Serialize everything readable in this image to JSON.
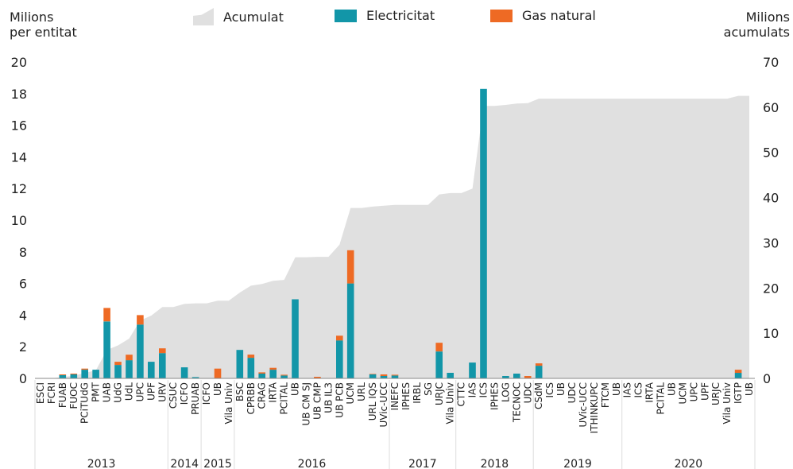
{
  "header": {
    "ylabel_left_1": "Milions",
    "ylabel_left_2": "per entitat",
    "ylabel_right_1": "Milions",
    "ylabel_right_2": "acumulats"
  },
  "legend": {
    "accumulated": "Acumulat",
    "electricity": "Electricitat",
    "gas": "Gas natural"
  },
  "colors": {
    "electricity": "#1296a8",
    "gas": "#ee6a24",
    "accumulated": "#e0e0e0",
    "axis": "#888888",
    "grid": "#dddddd"
  },
  "chart_data": {
    "type": "bar",
    "stacked": true,
    "ylim": [
      0,
      20
    ],
    "y_ticks": [
      0,
      2,
      4,
      6,
      8,
      10,
      12,
      14,
      16,
      18,
      20
    ],
    "y2lim": [
      0,
      70
    ],
    "y2_ticks": [
      0,
      10,
      20,
      30,
      40,
      50,
      60,
      70
    ],
    "categories": [
      "ESCI",
      "FCRI",
      "FUAB",
      "FUOC",
      "PCiTUdG",
      "PMT",
      "UAB",
      "UdG",
      "UdL",
      "UPC",
      "UPF",
      "URV",
      "CSUC",
      "ICFO",
      "PRUAB",
      "ICFO",
      "UB",
      "Vila Univ",
      "BSC",
      "CPRBB",
      "CRAG",
      "IRTA",
      "PCITAL",
      "UB",
      "UB CM SJ",
      "UB CMP",
      "UB IL3",
      "UB PCB",
      "UCM",
      "URL",
      "URL IQS",
      "UVic-UCC",
      "INEFC",
      "IPHES",
      "IRBL",
      "SG",
      "URJC",
      "Vila Univ",
      "CTTC",
      "IAS",
      "ICS",
      "IPHES",
      "LOG",
      "TECNOC",
      "UDC",
      "CSdM",
      "ICS",
      "UB",
      "UDC",
      "UVic-UCC",
      "ITHINKUPC",
      "FTCM",
      "UB",
      "IAS",
      "ICS",
      "IRTA",
      "PCITAL",
      "UB",
      "UCM",
      "UPC",
      "UPF",
      "URJC",
      "Vila Univ",
      "IGTP",
      "UB"
    ],
    "years": [
      {
        "label": "2013",
        "count": 12
      },
      {
        "label": "2014",
        "count": 3
      },
      {
        "label": "2015",
        "count": 3
      },
      {
        "label": "2016",
        "count": 14
      },
      {
        "label": "2017",
        "count": 6
      },
      {
        "label": "2018",
        "count": 7
      },
      {
        "label": "2019",
        "count": 8
      },
      {
        "label": "2020",
        "count": 12
      }
    ],
    "series": [
      {
        "name": "Electricitat",
        "values": [
          0,
          0,
          0.2,
          0.25,
          0.55,
          0.55,
          3.6,
          0.85,
          1.15,
          3.4,
          1.05,
          1.6,
          0,
          0.7,
          0.08,
          0,
          0,
          0,
          1.8,
          1.3,
          0.3,
          0.55,
          0.18,
          5.0,
          0,
          0,
          0,
          2.4,
          6.0,
          0,
          0.25,
          0.15,
          0.18,
          0,
          0,
          0,
          1.7,
          0.35,
          0,
          1.0,
          18.3,
          0,
          0.15,
          0.3,
          0,
          0.8,
          0,
          0,
          0,
          0,
          0,
          0,
          0,
          0,
          0,
          0,
          0,
          0,
          0,
          0,
          0,
          0,
          0,
          0.35,
          0
        ]
      },
      {
        "name": "Gas natural",
        "values": [
          0,
          0,
          0.05,
          0.05,
          0.07,
          0,
          0.85,
          0.2,
          0.35,
          0.6,
          0,
          0.3,
          0,
          0,
          0,
          0,
          0.62,
          0,
          0,
          0.2,
          0.08,
          0.12,
          0.05,
          0,
          0,
          0.1,
          0,
          0.3,
          2.1,
          0,
          0.03,
          0.1,
          0.05,
          0,
          0,
          0,
          0.55,
          0,
          0,
          0,
          0,
          0,
          0,
          0,
          0.15,
          0.15,
          0,
          0,
          0,
          0,
          0,
          0,
          0,
          0,
          0,
          0,
          0,
          0,
          0,
          0,
          0,
          0,
          0,
          0.2,
          0
        ]
      },
      {
        "name": "Acumulat",
        "values": [
          0,
          0,
          0.3,
          0.6,
          1.2,
          1.8,
          6.3,
          7.3,
          8.8,
          12.8,
          13.9,
          15.8,
          15.8,
          16.5,
          16.6,
          16.6,
          17.2,
          17.2,
          19.0,
          20.5,
          20.9,
          21.6,
          21.8,
          26.8,
          26.8,
          26.9,
          26.9,
          29.6,
          37.7,
          37.7,
          38.0,
          38.2,
          38.4,
          38.4,
          38.4,
          38.4,
          40.7,
          41.0,
          41.0,
          42.0,
          60.3,
          60.3,
          60.5,
          60.8,
          60.9,
          61.9,
          61.9,
          61.9,
          61.9,
          61.9,
          61.9,
          61.9,
          61.9,
          61.9,
          61.9,
          61.9,
          61.9,
          61.9,
          61.9,
          61.9,
          61.9,
          61.9,
          61.9,
          62.5,
          62.5
        ]
      }
    ]
  }
}
